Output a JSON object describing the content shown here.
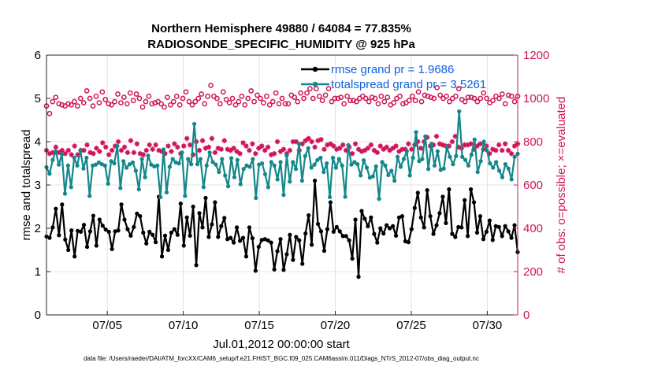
{
  "chart_data": {
    "type": "line",
    "title_line1": "Northern Hemisphere 49880 / 64084 = 77.835%",
    "title_line2": "RADIOSONDE_SPECIFIC_HUMIDITY @ 925 hPa",
    "xlabel": "Jul.01,2012 00:00:00 start",
    "ylabel": "rmse and totalspread",
    "ylabel_right": "# of obs: o=possible; ×=evaluated",
    "footnote": "data file: /Users/raeder/DAI/ATM_forcXX/CAM6_setup/f.e21.FHIST_BGC.f09_025.CAM6assim.011/Diags_NTrS_2012-07/obs_diag_output.nc",
    "x_range": [
      1,
      32
    ],
    "ylim": [
      0,
      6
    ],
    "ylim_right": [
      0,
      1200
    ],
    "x_ticks": [
      5,
      10,
      15,
      20,
      25,
      30
    ],
    "x_tick_labels": [
      "07/05",
      "07/10",
      "07/15",
      "07/20",
      "07/25",
      "07/30"
    ],
    "y_ticks": [
      0,
      1,
      2,
      3,
      4,
      5,
      6
    ],
    "y_tick_labels": [
      "0",
      "1",
      "2",
      "3",
      "4",
      "5",
      "6"
    ],
    "y_ticks_right": [
      0,
      200,
      400,
      600,
      800,
      1000,
      1200
    ],
    "y_tick_labels_right": [
      "0",
      "200",
      "400",
      "600",
      "800",
      "1000",
      "1200"
    ],
    "grid": true,
    "series": [
      {
        "name": "rmse grand pr = 1.9686",
        "axis": "left",
        "color": "#000000",
        "marker": "filled-circle",
        "values": [
          1.81,
          1.78,
          2.02,
          2.45,
          1.84,
          2.55,
          1.74,
          1.5,
          1.95,
          1.35,
          1.94,
          1.92,
          2.08,
          1.57,
          1.93,
          2.29,
          1.6,
          2.2,
          2.06,
          1.97,
          1.92,
          1.52,
          1.93,
          1.95,
          2.55,
          2.2,
          1.98,
          1.83,
          2.03,
          2.34,
          2.28,
          1.9,
          1.65,
          1.92,
          1.85,
          1.68,
          2.73,
          1.35,
          1.83,
          1.5,
          1.9,
          1.98,
          1.85,
          2.57,
          1.6,
          2.25,
          1.83,
          2.5,
          1.15,
          2.35,
          2.02,
          2.7,
          1.8,
          2.09,
          2.6,
          1.8,
          2.05,
          2.24,
          1.75,
          1.78,
          1.67,
          2.02,
          1.71,
          1.78,
          1.35,
          2.02,
          1.77,
          1.02,
          1.57,
          1.73,
          1.75,
          1.72,
          1.67,
          1.05,
          1.47,
          1.75,
          1.04,
          1.4,
          1.85,
          1.27,
          1.8,
          1.72,
          1.18,
          1.88,
          2.3,
          1.62,
          3.1,
          2.1,
          1.93,
          1.48,
          1.98,
          2.6,
          1.92,
          2.03,
          1.93,
          1.82,
          1.82,
          1.72,
          1.3,
          2.2,
          0.88,
          2.4,
          2.22,
          2.05,
          2.25,
          1.87,
          1.67,
          2.0,
          1.88,
          2.07,
          2.0,
          2.05,
          1.83,
          2.25,
          2.28,
          1.7,
          1.68,
          1.98,
          2.47,
          2.82,
          2.25,
          2.02,
          2.88,
          2.28,
          1.87,
          2.07,
          2.35,
          2.73,
          2.12,
          2.9,
          1.87,
          1.8,
          2.03,
          2.02,
          2.65,
          1.82,
          2.9,
          2.6,
          1.9,
          2.28,
          1.75,
          1.92,
          2.18,
          1.73,
          2.05,
          2.03,
          1.82,
          2.05,
          1.93,
          1.78,
          2.07,
          1.45
        ]
      },
      {
        "name": "totalspread grand pr = 3.5261",
        "axis": "left",
        "color": "#13878a",
        "marker": "filled-circle",
        "values": [
          3.41,
          3.26,
          3.58,
          3.78,
          3.47,
          3.71,
          2.8,
          3.45,
          2.95,
          3.63,
          3.45,
          3.8,
          3.38,
          3.63,
          2.75,
          3.45,
          3.47,
          3.52,
          3.48,
          3.45,
          3.03,
          3.55,
          3.5,
          3.9,
          2.93,
          3.55,
          3.4,
          3.48,
          3.52,
          3.33,
          2.9,
          3.6,
          3.18,
          3.68,
          3.47,
          3.43,
          3.45,
          2.72,
          3.82,
          2.83,
          3.42,
          3.6,
          3.52,
          3.5,
          3.75,
          2.75,
          3.6,
          3.48,
          4.41,
          3.48,
          3.6,
          2.95,
          3.45,
          3.75,
          3.53,
          3.47,
          3.3,
          3.6,
          3.22,
          2.97,
          3.62,
          3.18,
          3.58,
          3.02,
          3.37,
          3.45,
          3.42,
          3.6,
          2.7,
          3.47,
          3.5,
          3.25,
          2.95,
          3.53,
          3.45,
          3.13,
          3.53,
          2.77,
          3.68,
          3.08,
          3.53,
          3.37,
          3.95,
          3.1,
          3.67,
          3.85,
          3.4,
          3.47,
          3.58,
          3.63,
          3.3,
          3.5,
          2.72,
          3.63,
          3.4,
          3.6,
          3.45,
          2.73,
          3.92,
          3.47,
          3.53,
          3.48,
          3.22,
          3.57,
          3.4,
          3.17,
          3.2,
          3.43,
          2.68,
          3.53,
          3.45,
          3.23,
          3.33,
          3.1,
          3.65,
          3.42,
          3.6,
          3.78,
          3.22,
          3.63,
          4.22,
          3.55,
          3.6,
          4.12,
          3.37,
          3.95,
          3.45,
          3.78,
          3.35,
          3.38,
          3.88,
          3.65,
          3.48,
          3.67,
          4.7,
          3.65,
          3.58,
          3.45,
          3.7,
          4.05,
          3.3,
          3.55,
          4.0,
          3.8,
          3.5,
          3.4,
          3.53,
          3.33,
          3.18,
          3.48,
          3.38,
          3.13,
          3.65,
          3.72
        ]
      },
      {
        "name": "possible",
        "axis": "right",
        "color": "#d0145a",
        "marker": "open-circle",
        "values": [
          965,
          930,
          985,
          1005,
          975,
          970,
          965,
          975,
          970,
          985,
          965,
          1000,
          980,
          1035,
          1000,
          965,
          1010,
          980,
          1030,
          995,
          975,
          970,
          985,
          1020,
          980,
          1005,
          975,
          1025,
          990,
          1020,
          1000,
          960,
          985,
          1010,
          975,
          980,
          985,
          975,
          960,
          1005,
          970,
          985,
          1010,
          970,
          1000,
          1030,
          985,
          970,
          985,
          1000,
          1020,
          975,
          1010,
          1060,
          1010,
          1000,
          975,
          1030,
          995,
          980,
          1000,
          970,
          985,
          1010,
          970,
          1000,
          1035,
          985,
          1015,
          1000,
          980,
          1010,
          970,
          985,
          1025,
          975,
          1000,
          975,
          975,
          1015,
          1005,
          985,
          1025,
          1000,
          1025,
          1045,
          1000,
          1045,
          1010,
          990,
          1015,
          1045,
          985,
          1000,
          1000,
          1005,
          975,
          1010,
          990,
          990,
          985,
          1000,
          1010,
          1000,
          985,
          1005,
          1000,
          975,
          1010,
          985,
          1005,
          970,
          980,
          1000,
          1010,
          975,
          980,
          990,
          1010,
          990,
          1030,
          985,
          1015,
          1010,
          1005,
          1000,
          1050,
          1015,
          1000,
          1010,
          985,
          1000,
          1010,
          1045,
          995,
          985,
          1005,
          1005,
          1000,
          985,
          1000,
          1025,
          1000,
          980,
          990,
          1010,
          1000,
          1020,
          975,
          1015,
          1010,
          985,
          1010
        ]
      },
      {
        "name": "evaluated",
        "axis": "right",
        "color": "#d0145a",
        "marker": "asterisk",
        "values": [
          760,
          745,
          750,
          775,
          750,
          760,
          745,
          760,
          740,
          780,
          740,
          760,
          760,
          785,
          750,
          745,
          770,
          755,
          795,
          775,
          740,
          760,
          780,
          800,
          760,
          775,
          750,
          805,
          750,
          790,
          745,
          740,
          760,
          785,
          765,
          785,
          760,
          755,
          745,
          780,
          755,
          790,
          775,
          745,
          780,
          815,
          785,
          740,
          800,
          760,
          805,
          770,
          775,
          815,
          750,
          770,
          765,
          805,
          765,
          760,
          770,
          755,
          745,
          795,
          780,
          760,
          790,
          745,
          770,
          780,
          760,
          775,
          740,
          745,
          800,
          755,
          765,
          745,
          760,
          800,
          800,
          760,
          790,
          805,
          815,
          800,
          775,
          805,
          810,
          765,
          785,
          790,
          780,
          765,
          770,
          785,
          760,
          775,
          745,
          790,
          765,
          755,
          760,
          770,
          785,
          760,
          750,
          780,
          765,
          775,
          760,
          770,
          780,
          755,
          765,
          765,
          790,
          765,
          785,
          800,
          770,
          800,
          820,
          780,
          785,
          825,
          790,
          785,
          780,
          780,
          800,
          825,
          775,
          770,
          785,
          785,
          790,
          765,
          780,
          790,
          765,
          780,
          745,
          765,
          760,
          785,
          760,
          790,
          760,
          745,
          780,
          790
        ]
      }
    ]
  }
}
